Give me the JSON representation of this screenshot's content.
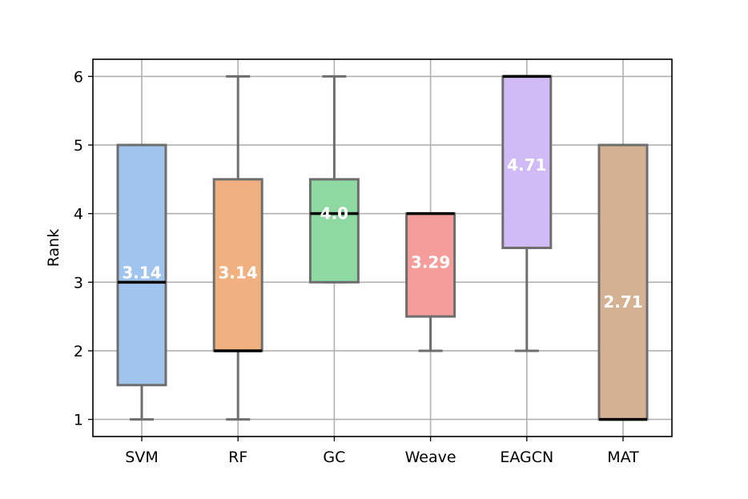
{
  "chart_data": {
    "type": "box",
    "title": "",
    "xlabel": "",
    "ylabel": "Rank",
    "ylim": [
      0.75,
      6.25
    ],
    "yticks": [
      "1",
      "2",
      "3",
      "4",
      "5",
      "6"
    ],
    "grid": true,
    "categories": [
      "SVM",
      "RF",
      "GC",
      "Weave",
      "EAGCN",
      "MAT"
    ],
    "boxes": [
      {
        "name": "SVM",
        "min": 1,
        "q1": 1.5,
        "median": 3,
        "q3": 5,
        "max": 5,
        "mean": 3.14,
        "mean_label": "3.14",
        "color": "#a1c4ee"
      },
      {
        "name": "RF",
        "min": 1,
        "q1": 2,
        "median": 2,
        "q3": 4.5,
        "max": 6,
        "mean": 3.14,
        "mean_label": "3.14",
        "color": "#f1b07f"
      },
      {
        "name": "GC",
        "min": 3,
        "q1": 3,
        "median": 4,
        "q3": 4.5,
        "max": 6,
        "mean": 4.0,
        "mean_label": "4.0",
        "color": "#8dd9a1"
      },
      {
        "name": "Weave",
        "min": 2,
        "q1": 2.5,
        "median": 4,
        "q3": 4,
        "max": 4,
        "mean": 3.29,
        "mean_label": "3.29",
        "color": "#f49d9b"
      },
      {
        "name": "EAGCN",
        "min": 2,
        "q1": 3.5,
        "median": 6,
        "q3": 6,
        "max": 6,
        "mean": 4.71,
        "mean_label": "4.71",
        "color": "#d0bbf6"
      },
      {
        "name": "MAT",
        "min": 1,
        "q1": 1,
        "median": 1,
        "q3": 5,
        "max": 5,
        "mean": 2.71,
        "mean_label": "2.71",
        "color": "#d6b295"
      }
    ]
  }
}
